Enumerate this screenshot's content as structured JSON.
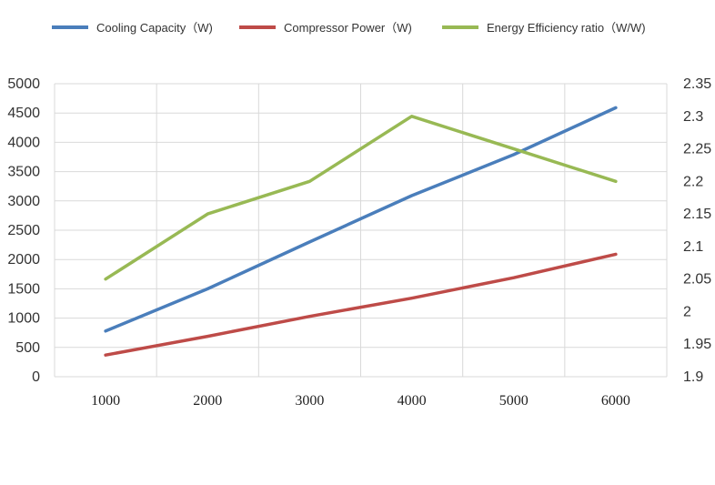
{
  "chart_data": {
    "type": "line",
    "categories": [
      "1000",
      "2000",
      "3000",
      "4000",
      "5000",
      "6000"
    ],
    "x": [
      1000,
      2000,
      3000,
      4000,
      5000,
      6000
    ],
    "series": [
      {
        "name": "Cooling Capacity（W)",
        "axis": "left",
        "color": "#4a7ebb",
        "values": [
          780,
          1500,
          2300,
          3090,
          3790,
          4590
        ]
      },
      {
        "name": "Compressor Power（W)",
        "axis": "left",
        "color": "#be4b48",
        "values": [
          370,
          690,
          1030,
          1340,
          1690,
          2090
        ]
      },
      {
        "name": "Energy Efficiency ratio（W/W)",
        "axis": "right",
        "color": "#98b954",
        "values": [
          2.05,
          2.15,
          2.2,
          2.3,
          2.25,
          2.2
        ]
      }
    ],
    "y_left": {
      "ylim": [
        0,
        5000
      ],
      "ticks": [
        "0",
        "500",
        "1000",
        "1500",
        "2000",
        "2500",
        "3000",
        "3500",
        "4000",
        "4500",
        "5000"
      ]
    },
    "y_right": {
      "ylim": [
        1.9,
        2.35
      ],
      "ticks": [
        "1.9",
        "1.95",
        "2",
        "2.05",
        "2.1",
        "2.15",
        "2.2",
        "2.25",
        "2.3",
        "2.35"
      ]
    },
    "grid": true,
    "legend": "top"
  }
}
